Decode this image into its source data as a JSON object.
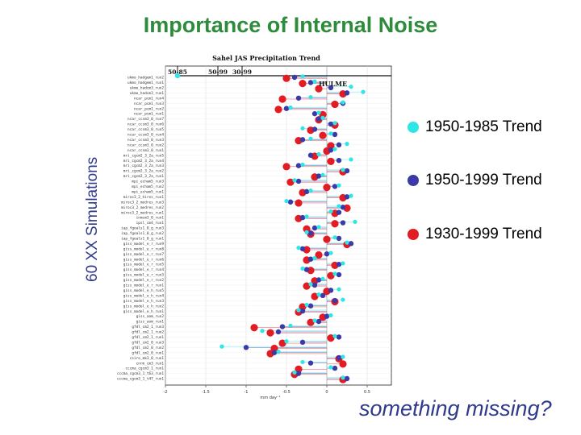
{
  "slide": {
    "title": "Importance of Internal Noise",
    "note": "something missing?"
  },
  "side_label": "60 XX Simulations",
  "colors": {
    "trend_1950_1985": "#2ee6e6",
    "trend_1950_1999": "#3a3aa8",
    "trend_1930_1999": "#e31b23",
    "title": "#2e8b3c",
    "note": "#2f3a8a"
  },
  "legend": [
    {
      "label": "1950-1985 Trend",
      "color": "#2ee6e6"
    },
    {
      "label": "1950-1999 Trend",
      "color": "#3a3aa8"
    },
    {
      "label": "1930-1999 Trend",
      "color": "#e31b23"
    }
  ],
  "chart_data": {
    "type": "scatter",
    "title": "Sahel JAS Precipitation Trend",
    "xlabel": "mm day⁻¹",
    "xlim": [
      -2,
      0.8
    ],
    "xticks": [
      -2,
      -1.5,
      -1,
      -0.5,
      0,
      0.5
    ],
    "xtick_labels": [
      "-2",
      "-1.5",
      "-1",
      "-0.5",
      "0",
      "0.5"
    ],
    "observations": {
      "label": "HULME",
      "periods": [
        {
          "name": "50-85",
          "value": -1.85
        },
        {
          "name": "50-99",
          "value": -1.35
        },
        {
          "name": "30-99",
          "value": -1.05
        }
      ]
    },
    "categories": [
      "ukmo_hadgem1_run2",
      "ukmo_hadgem1_run1",
      "ukmo_hadcm3_run2",
      "ukmo_hadcm3_run1",
      "ncar_pcm1_run4",
      "ncar_pcm1_run3",
      "ncar_pcm1_run2",
      "ncar_pcm1_run1",
      "ncar_ccsm3_0_run7",
      "ncar_ccsm3_0_run6",
      "ncar_ccsm3_0_run5",
      "ncar_ccsm3_0_run4",
      "ncar_ccsm3_0_run3",
      "ncar_ccsm3_0_run2",
      "ncar_ccsm3_0_run1",
      "mri_cgcm2_3_2a_run5",
      "mri_cgcm2_3_2a_run4",
      "mri_cgcm2_3_2a_run3",
      "mri_cgcm2_3_2a_run2",
      "mri_cgcm2_3_2a_run1",
      "mpi_echam5_run3",
      "mpi_echam5_run2",
      "mpi_echam5_run1",
      "miroc3_2_hires_run1",
      "miroc3_2_medres_run3",
      "miroc3_2_medres_run2",
      "miroc3_2_medres_run1",
      "inmcm3_0_run1",
      "ipsl_cm4_run1",
      "iap_fgoals1_0_g_run3",
      "iap_fgoals1_0_g_run2",
      "iap_fgoals1_0_g_run1",
      "giss_model_e_r_run9",
      "giss_model_e_r_run8",
      "giss_model_e_r_run7",
      "giss_model_e_r_run6",
      "giss_model_e_r_run5",
      "giss_model_e_r_run4",
      "giss_model_e_r_run3",
      "giss_model_e_r_run2",
      "giss_model_e_r_run1",
      "giss_model_e_h_run5",
      "giss_model_e_h_run4",
      "giss_model_e_h_run3",
      "giss_model_e_h_run2",
      "giss_model_e_h_run1",
      "giss_aom_run2",
      "giss_aom_run1",
      "gfdl_cm2_1_run3",
      "gfdl_cm2_1_run2",
      "gfdl_cm2_1_run1",
      "gfdl_cm2_0_run3",
      "gfdl_cm2_0_run2",
      "gfdl_cm2_0_run1",
      "csiro_mk3_0_run1",
      "cnrm_cm3_run1",
      "cccma_cgcm3_1_run1",
      "cccma_cgcm3_1_t63_run1",
      "cccma_cgcm3_1_t47_run1"
    ],
    "series": [
      {
        "name": "1950-1985 Trend",
        "color": "#2ee6e6",
        "values": [
          -0.3,
          -0.15,
          0.3,
          0.45,
          -0.2,
          0.2,
          -0.45,
          -0.1,
          -0.05,
          0.1,
          -0.3,
          0.05,
          -0.2,
          0.25,
          0.1,
          -0.1,
          0.3,
          -0.3,
          0.2,
          -0.05,
          -0.4,
          0.15,
          -0.2,
          0.3,
          -0.5,
          0.15,
          0.05,
          -0.25,
          0.35,
          -0.1,
          -0.25,
          0.1,
          0.25,
          -0.35,
          0.05,
          -0.15,
          0.2,
          -0.3,
          0.1,
          -0.05,
          -0.2,
          0.15,
          -0.1,
          0.2,
          -0.25,
          -0.35,
          0.05,
          -0.15,
          -0.45,
          -0.8,
          0.1,
          -0.5,
          -1.3,
          -0.6,
          0.2,
          -0.3,
          0.05,
          -0.4,
          0.2
        ]
      },
      {
        "name": "1950-1999 Trend",
        "color": "#3a3aa8",
        "values": [
          -0.4,
          -0.2,
          0.05,
          0.25,
          -0.35,
          0.2,
          -0.5,
          -0.15,
          -0.1,
          0.05,
          -0.15,
          0.1,
          -0.3,
          0.15,
          0.05,
          -0.2,
          0.15,
          -0.35,
          0.25,
          -0.1,
          -0.35,
          0.1,
          -0.25,
          0.25,
          -0.45,
          0.2,
          0.15,
          -0.3,
          0.2,
          -0.15,
          -0.2,
          0.15,
          0.3,
          -0.3,
          0.0,
          -0.2,
          0.15,
          -0.25,
          0.15,
          -0.1,
          -0.15,
          0.05,
          -0.05,
          0.1,
          -0.2,
          -0.3,
          0.0,
          -0.1,
          -0.55,
          -0.6,
          0.15,
          -0.3,
          -1.0,
          -0.65,
          0.15,
          -0.2,
          0.1,
          -0.35,
          0.25
        ]
      },
      {
        "name": "1930-1999 Trend",
        "color": "#e31b23",
        "values": [
          -0.5,
          -0.3,
          -0.1,
          0.2,
          -0.55,
          0.1,
          -0.6,
          -0.05,
          -0.1,
          0.1,
          -0.2,
          -0.05,
          -0.35,
          0.05,
          0.0,
          -0.15,
          0.05,
          -0.5,
          0.2,
          -0.15,
          -0.45,
          0.0,
          -0.3,
          0.2,
          -0.35,
          0.25,
          0.1,
          -0.35,
          0.1,
          -0.25,
          -0.2,
          0.0,
          0.25,
          -0.25,
          -0.1,
          -0.25,
          0.1,
          -0.2,
          0.05,
          -0.15,
          -0.25,
          0.0,
          -0.15,
          0.1,
          -0.3,
          -0.35,
          -0.05,
          -0.2,
          -0.9,
          -0.7,
          0.05,
          -0.55,
          -0.65,
          -0.7,
          0.15,
          0.2,
          -0.35,
          -0.4,
          0.2
        ]
      }
    ]
  }
}
